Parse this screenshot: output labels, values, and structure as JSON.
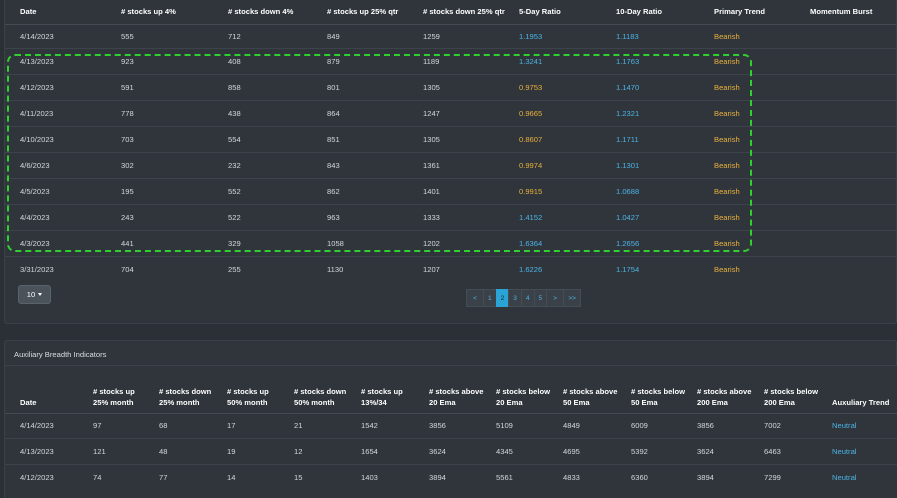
{
  "breadth": {
    "headers": [
      "Date",
      "# stocks up 4%",
      "# stocks down 4%",
      "# stocks up 25% qtr",
      "# stocks down 25% qtr",
      "5-Day Ratio",
      "10-Day Ratio",
      "Primary Trend",
      "Momentum Burst"
    ],
    "rows": [
      {
        "date": "4/14/2023",
        "up4": "555",
        "down4": "712",
        "up25q": "849",
        "down25q": "1259",
        "r5": "1.1953",
        "r5_color": "blue",
        "r10": "1.1183",
        "trend": "Bearish",
        "burst": ""
      },
      {
        "date": "4/13/2023",
        "up4": "923",
        "down4": "408",
        "up25q": "879",
        "down25q": "1189",
        "r5": "1.3241",
        "r5_color": "blue",
        "r10": "1.1763",
        "trend": "Bearish",
        "burst": ""
      },
      {
        "date": "4/12/2023",
        "up4": "591",
        "down4": "858",
        "up25q": "801",
        "down25q": "1305",
        "r5": "0.9753",
        "r5_color": "yellow",
        "r10": "1.1470",
        "trend": "Bearish",
        "burst": ""
      },
      {
        "date": "4/11/2023",
        "up4": "778",
        "down4": "438",
        "up25q": "864",
        "down25q": "1247",
        "r5": "0.9665",
        "r5_color": "yellow",
        "r10": "1.2321",
        "trend": "Bearish",
        "burst": ""
      },
      {
        "date": "4/10/2023",
        "up4": "703",
        "down4": "554",
        "up25q": "851",
        "down25q": "1305",
        "r5": "0.8607",
        "r5_color": "yellow",
        "r10": "1.1711",
        "trend": "Bearish",
        "burst": ""
      },
      {
        "date": "4/6/2023",
        "up4": "302",
        "down4": "232",
        "up25q": "843",
        "down25q": "1361",
        "r5": "0.9974",
        "r5_color": "yellow",
        "r10": "1.1301",
        "trend": "Bearish",
        "burst": ""
      },
      {
        "date": "4/5/2023",
        "up4": "195",
        "down4": "552",
        "up25q": "862",
        "down25q": "1401",
        "r5": "0.9915",
        "r5_color": "yellow",
        "r10": "1.0688",
        "trend": "Bearish",
        "burst": ""
      },
      {
        "date": "4/4/2023",
        "up4": "243",
        "down4": "522",
        "up25q": "963",
        "down25q": "1333",
        "r5": "1.4152",
        "r5_color": "blue",
        "r10": "1.0427",
        "trend": "Bearish",
        "burst": ""
      },
      {
        "date": "4/3/2023",
        "up4": "441",
        "down4": "329",
        "up25q": "1058",
        "down25q": "1202",
        "r5": "1.6364",
        "r5_color": "blue",
        "r10": "1.2656",
        "trend": "Bearish",
        "burst": ""
      },
      {
        "date": "3/31/2023",
        "up4": "704",
        "down4": "255",
        "up25q": "1130",
        "down25q": "1207",
        "r5": "1.6226",
        "r5_color": "blue",
        "r10": "1.1754",
        "trend": "Bearish",
        "burst": ""
      }
    ],
    "page_size": "10",
    "pagination": [
      "<",
      "1",
      "2",
      "3",
      "4",
      "5",
      ">",
      ">>"
    ],
    "active_page": "2"
  },
  "auxiliary": {
    "title": "Auxiliary Breadth Indicators",
    "headers": [
      [
        "Date"
      ],
      [
        "# stocks up",
        "25% month"
      ],
      [
        "# stocks down",
        "25% month"
      ],
      [
        "# stocks up",
        "50% month"
      ],
      [
        "# stocks down",
        "50% month"
      ],
      [
        "# stocks up",
        "13%/34"
      ],
      [
        "# stocks above",
        "20 Ema"
      ],
      [
        "# stocks below",
        "20 Ema"
      ],
      [
        "# stocks above",
        "50 Ema"
      ],
      [
        "# stocks below",
        "50 Ema"
      ],
      [
        "# stocks above",
        "200 Ema"
      ],
      [
        "# stocks below",
        "200 Ema"
      ],
      [
        "Auxuliary Trend"
      ]
    ],
    "rows": [
      [
        "4/14/2023",
        "97",
        "68",
        "17",
        "21",
        "1542",
        "3856",
        "5109",
        "4849",
        "6009",
        "3856",
        "7002",
        "Neutral"
      ],
      [
        "4/13/2023",
        "121",
        "48",
        "19",
        "12",
        "1654",
        "3624",
        "4345",
        "4695",
        "5392",
        "3624",
        "6463",
        "Neutral"
      ],
      [
        "4/12/2023",
        "74",
        "77",
        "14",
        "15",
        "1403",
        "3894",
        "5561",
        "4833",
        "6360",
        "3894",
        "7299",
        "Neutral"
      ]
    ]
  },
  "colors": {
    "blue": "#4db3e6",
    "yellow": "#e8b03c",
    "highlight": "#2fd02f",
    "active_page": "#2aa3d6"
  }
}
